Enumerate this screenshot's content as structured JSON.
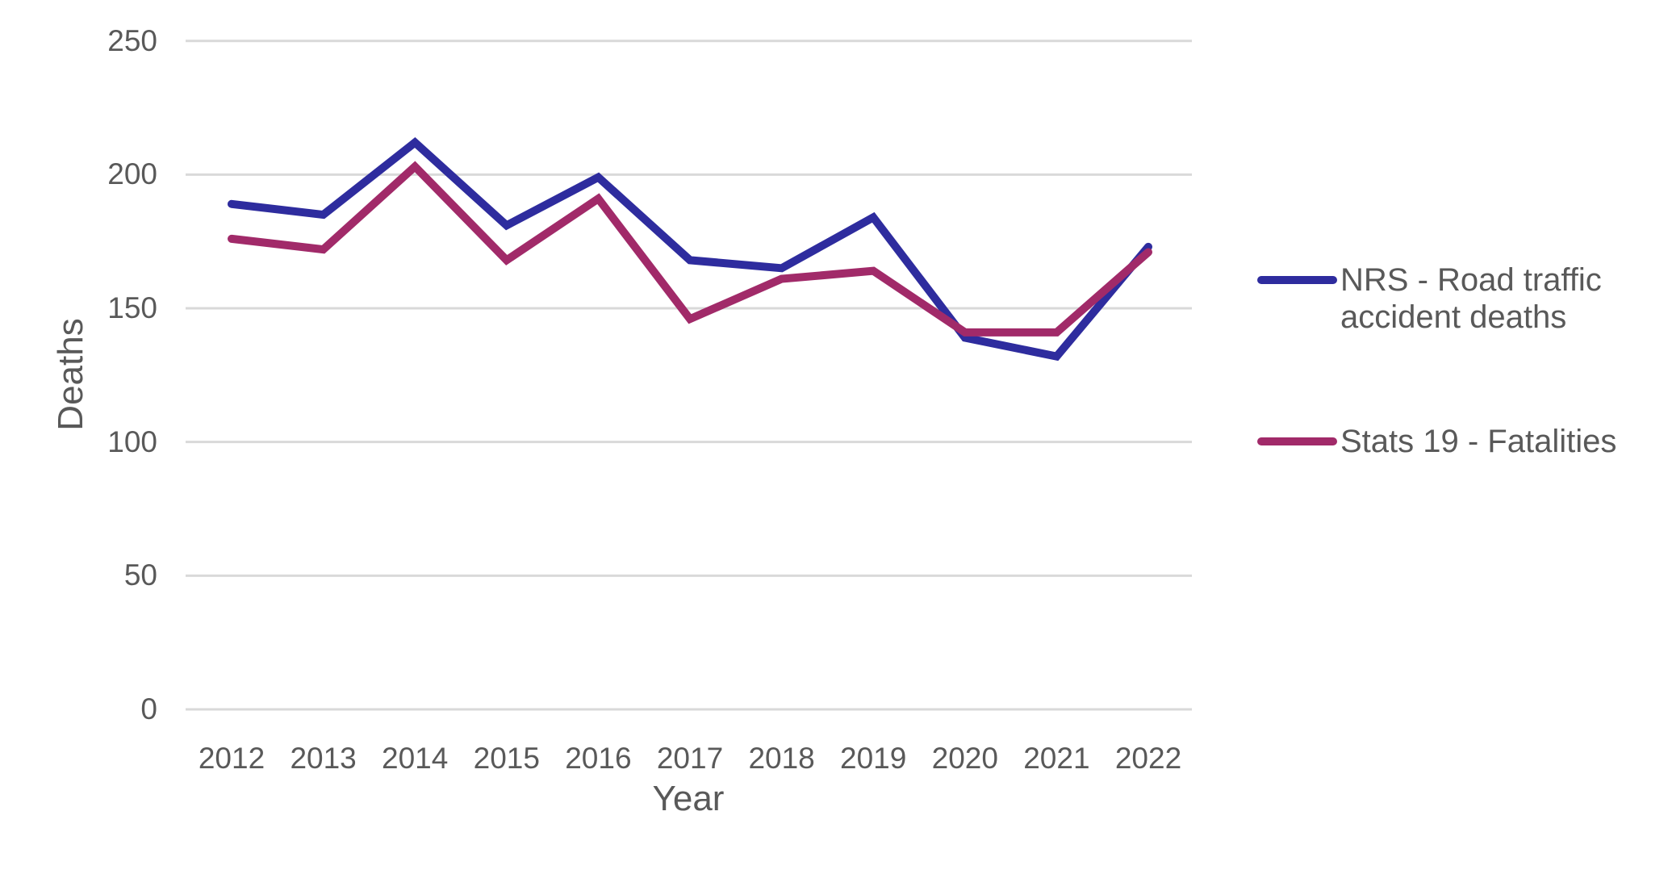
{
  "chart_data": {
    "type": "line",
    "title": "",
    "xlabel": "Year",
    "ylabel": "Deaths",
    "categories": [
      "2012",
      "2013",
      "2014",
      "2015",
      "2016",
      "2017",
      "2018",
      "2019",
      "2020",
      "2021",
      "2022"
    ],
    "series": [
      {
        "name": "NRS - Road traffic accident deaths",
        "color": "#2E2C9E",
        "values": [
          189,
          185,
          212,
          181,
          199,
          168,
          165,
          184,
          139,
          132,
          173
        ]
      },
      {
        "name": "Stats 19 - Fatalities",
        "color": "#A12A69",
        "values": [
          176,
          172,
          203,
          168,
          191,
          146,
          161,
          164,
          141,
          141,
          171
        ]
      }
    ],
    "y_axis": {
      "min": 0,
      "max": 250,
      "tick_step": 50,
      "ticks": [
        0,
        50,
        100,
        150,
        200,
        250
      ],
      "tick_labels": [
        "0",
        "50",
        "100",
        "150",
        "200",
        "250"
      ]
    },
    "grid": "horizontal",
    "gridline_color": "#D9D9D9",
    "text_color": "#595959",
    "line_width": 10,
    "legend_position": "right"
  }
}
